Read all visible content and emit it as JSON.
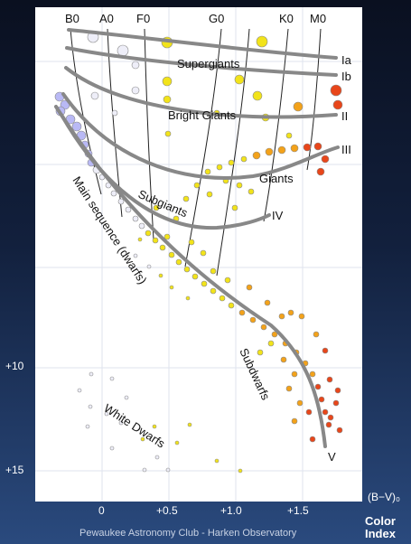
{
  "spectral_types": [
    "B0",
    "A0",
    "F0",
    "G0",
    "K0",
    "M0"
  ],
  "luminosity_classes": [
    "Ia",
    "Ib",
    "II",
    "III",
    "IV",
    "V"
  ],
  "regions": {
    "supergiants": "Supergiants",
    "bright_giants": "Bright Giants",
    "giants": "Giants",
    "subgiants": "Subgiants",
    "main_sequence": "Main sequence (dwarfs)",
    "subdwarfs": "Subdwarfs",
    "white_dwarfs": "White Dwarfs"
  },
  "y_tick_labels": {
    "plus10": "+10",
    "plus15": "+15"
  },
  "x_tick_labels": {
    "zero": "0",
    "half": "+0.5",
    "one": "+1.0",
    "one_half": "+1.5"
  },
  "axis": {
    "bv_label": "(B−V)₀",
    "color_index_label": "Color Index"
  },
  "credit": "Pewaukee Astronomy Club - Harken Observatory",
  "colors": {
    "blue": "#b9b9f5",
    "white": "#eeeef8",
    "yellow": "#f2e31a",
    "orange": "#f3a21a",
    "red": "#e8461a",
    "curve": "#888888"
  }
}
